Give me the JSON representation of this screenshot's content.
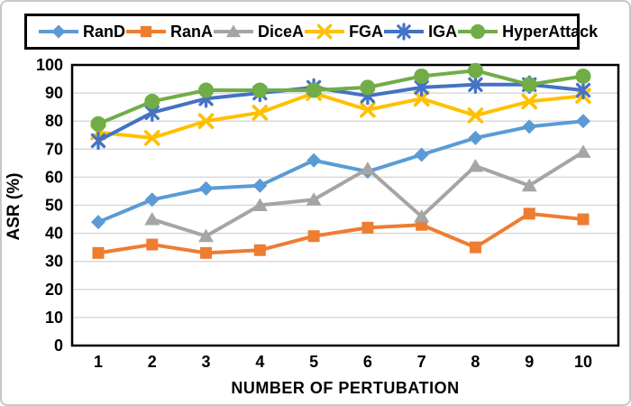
{
  "chart_data": {
    "type": "line",
    "title": "",
    "xlabel": "NUMBER OF PERTUBATION",
    "ylabel": "ASR (%)",
    "x": [
      1,
      2,
      3,
      4,
      5,
      6,
      7,
      8,
      9,
      10
    ],
    "yticks": [
      0,
      10,
      20,
      30,
      40,
      50,
      60,
      70,
      80,
      90,
      100
    ],
    "ylim": [
      0,
      100
    ],
    "grid": true,
    "legend_position": "top",
    "colors": {
      "grid": "#d9d9d9",
      "axis": "#000000",
      "text": "#000000"
    },
    "series": [
      {
        "name": "RanD",
        "color": "#5B9BD5",
        "marker": "diamond",
        "values": [
          44,
          52,
          56,
          57,
          66,
          62,
          68,
          74,
          78,
          80
        ]
      },
      {
        "name": "RanA",
        "color": "#ED7D31",
        "marker": "square",
        "values": [
          33,
          36,
          33,
          34,
          39,
          42,
          43,
          35,
          47,
          45
        ]
      },
      {
        "name": "DiceA",
        "color": "#A5A5A5",
        "marker": "triangle",
        "values": [
          null,
          45,
          39,
          50,
          52,
          63,
          46,
          64,
          57,
          69
        ]
      },
      {
        "name": "FGA",
        "color": "#FFC000",
        "marker": "x",
        "values": [
          76,
          74,
          80,
          83,
          90,
          84,
          88,
          82,
          87,
          89
        ]
      },
      {
        "name": "IGA",
        "color": "#4472C4",
        "marker": "asterisk",
        "values": [
          73,
          83,
          88,
          90,
          92,
          89,
          92,
          93,
          93,
          91
        ]
      },
      {
        "name": "HyperAttack",
        "color": "#70AD47",
        "marker": "circle",
        "values": [
          79,
          87,
          91,
          91,
          91,
          92,
          96,
          98,
          93,
          96
        ]
      }
    ]
  }
}
